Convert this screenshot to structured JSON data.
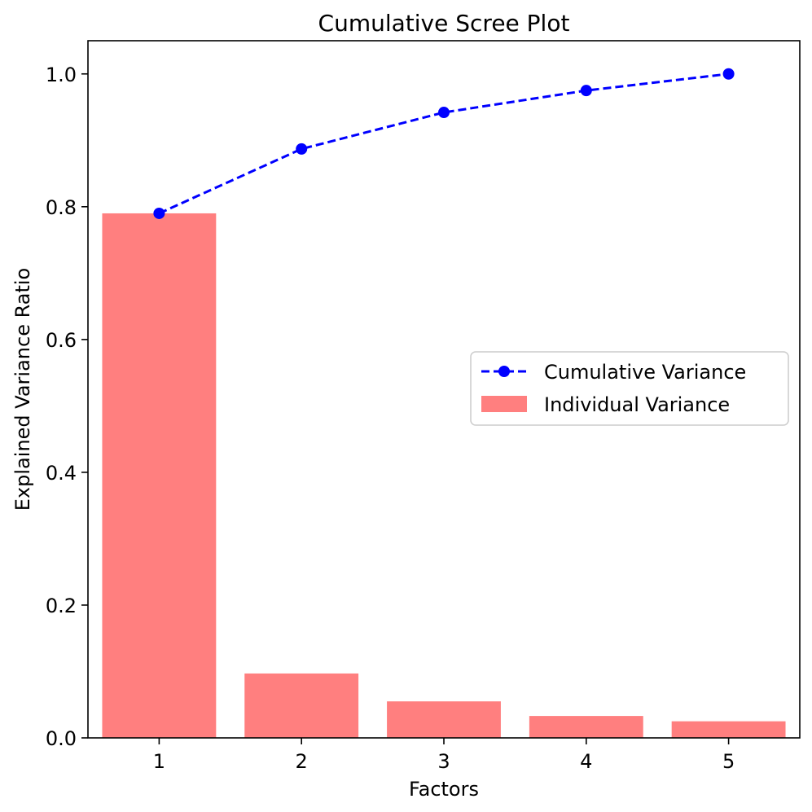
{
  "chart_data": {
    "type": "bar",
    "title": "Cumulative Scree Plot",
    "xlabel": "Factors",
    "ylabel": "Explained Variance Ratio",
    "categories": [
      "1",
      "2",
      "3",
      "4",
      "5"
    ],
    "ylim": [
      0,
      1.05
    ],
    "yticks": [
      0.0,
      0.2,
      0.4,
      0.6,
      0.8,
      1.0
    ],
    "ytick_labels": [
      "0.0",
      "0.2",
      "0.4",
      "0.6",
      "0.8",
      "1.0"
    ],
    "grid": false,
    "legend_position": "center-right",
    "series": [
      {
        "name": "Cumulative Variance",
        "kind": "line",
        "style": "dashed",
        "marker": "circle",
        "color": "#0000ff",
        "values": [
          0.79,
          0.887,
          0.942,
          0.975,
          1.0
        ]
      },
      {
        "name": "Individual Variance",
        "kind": "bar",
        "color": "#ff7f7f",
        "values": [
          0.79,
          0.097,
          0.055,
          0.033,
          0.025
        ]
      }
    ]
  }
}
